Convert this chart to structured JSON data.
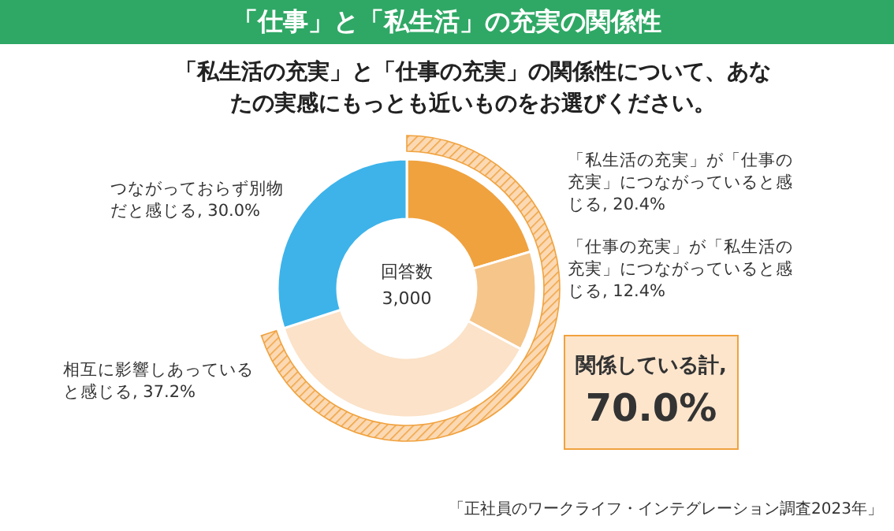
{
  "chart_data": {
    "type": "donut",
    "title": "「仕事」と「私生活」の充実の関係性",
    "subtitle": "「私生活の充実」と「仕事の充実」の関係性について、あなたの実感にもっとも近いものをお選びください。",
    "categories": [
      "「私生活の充実」が「仕事の充実」につながっていると感じる",
      "「仕事の充実」が「私生活の充実」につながっていると感じる",
      "相互に影響しあっていると感じる",
      "つながっておらず別物だと感じる"
    ],
    "values": [
      20.4,
      12.4,
      37.2,
      30.0
    ],
    "value_labels": [
      "20.4%",
      "12.4%",
      "37.2%",
      "30.0%"
    ],
    "colors": [
      "#f0a23e",
      "#f5c58a",
      "#fbe2c8",
      "#3db3ea"
    ],
    "annotations": [
      "回答数",
      "3,000",
      "関係している計,",
      "70.0%",
      "「正社員のワークライフ・インテグレーション調査2023年」"
    ]
  }
}
